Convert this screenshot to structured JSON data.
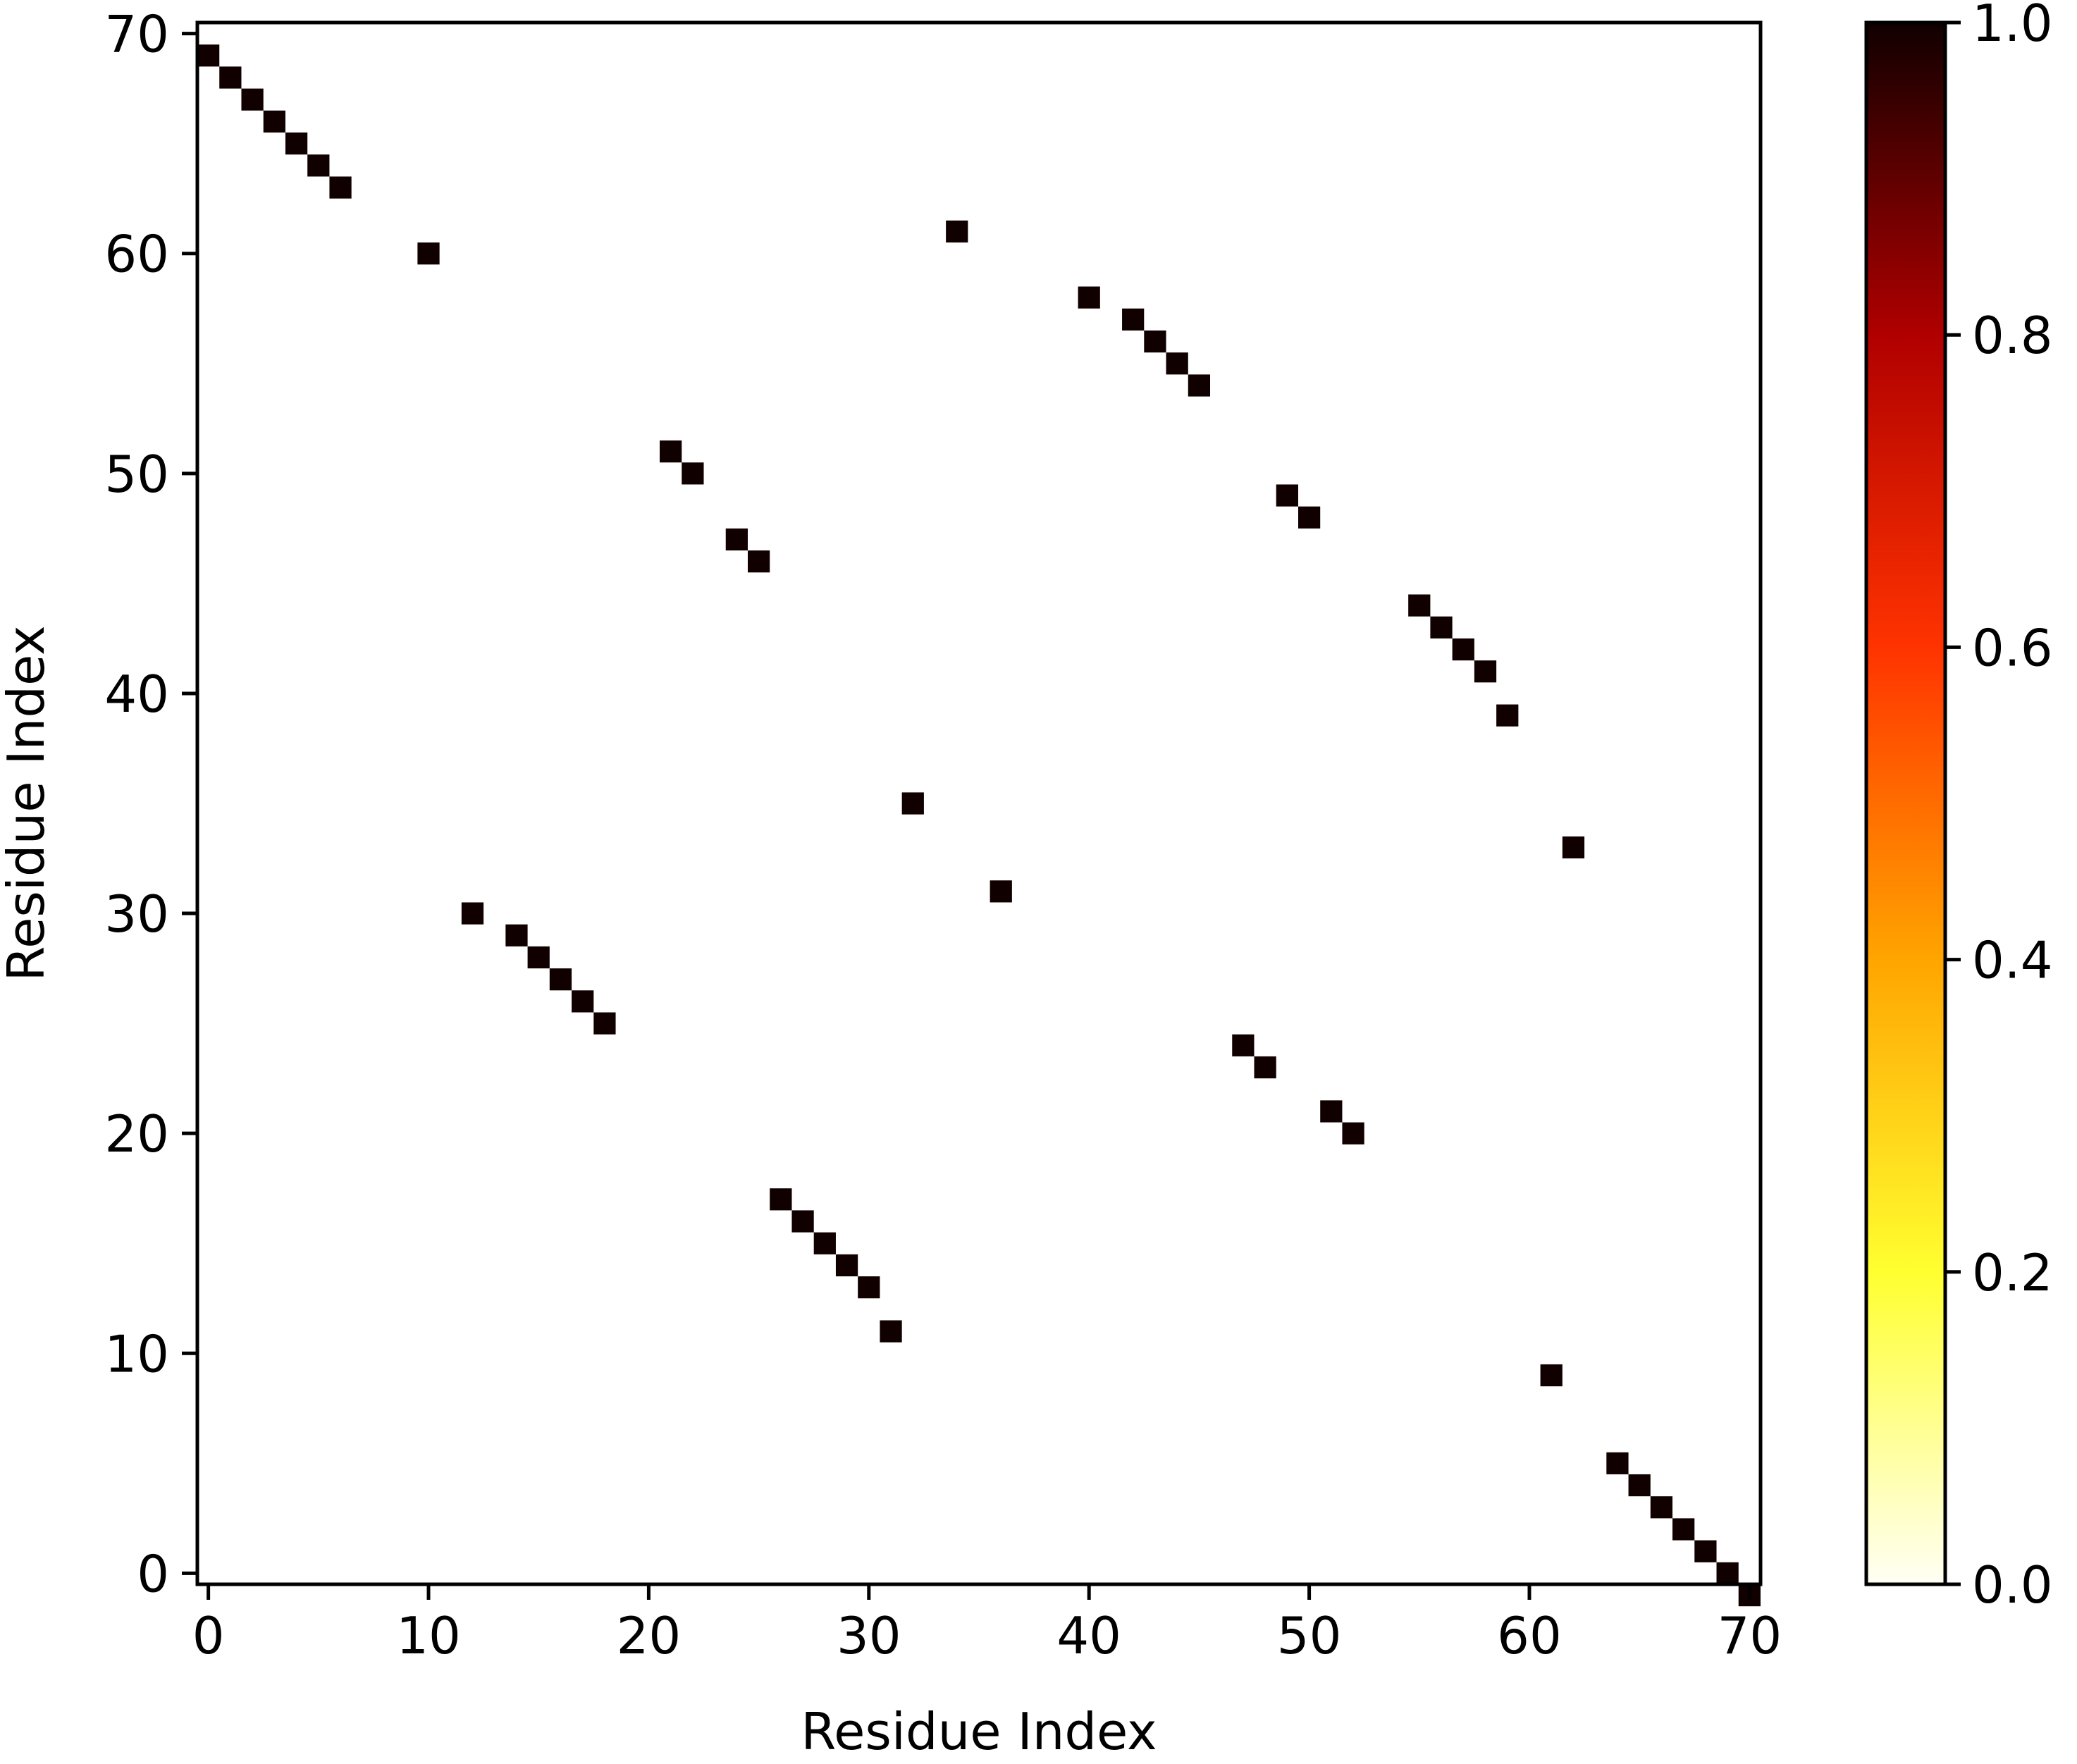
{
  "chart_data": {
    "type": "heatmap",
    "title": "",
    "xlabel": "Residue Index",
    "ylabel": "Residue Index",
    "size": 71,
    "xlim": [
      -0.5,
      70.5
    ],
    "ylim": [
      70.5,
      -0.5
    ],
    "x_ticks": [
      0,
      10,
      20,
      30,
      40,
      50,
      60,
      70
    ],
    "y_ticks": [
      0,
      10,
      20,
      30,
      40,
      50,
      60,
      70
    ],
    "grid": false,
    "cells": [
      [
        0,
        70
      ],
      [
        1,
        69
      ],
      [
        2,
        68
      ],
      [
        3,
        67
      ],
      [
        4,
        66
      ],
      [
        5,
        65
      ],
      [
        6,
        64
      ],
      [
        10,
        61
      ],
      [
        12,
        31
      ],
      [
        14,
        30
      ],
      [
        15,
        29
      ],
      [
        16,
        28
      ],
      [
        17,
        27
      ],
      [
        18,
        26
      ],
      [
        21,
        52
      ],
      [
        22,
        51
      ],
      [
        24,
        48
      ],
      [
        25,
        47
      ],
      [
        26,
        18
      ],
      [
        27,
        17
      ],
      [
        28,
        16
      ],
      [
        29,
        15
      ],
      [
        30,
        14
      ],
      [
        31,
        12
      ],
      [
        32,
        36
      ],
      [
        34,
        62
      ],
      [
        36,
        32
      ],
      [
        40,
        59
      ],
      [
        42,
        58
      ],
      [
        43,
        57
      ],
      [
        44,
        56
      ],
      [
        45,
        55
      ],
      [
        47,
        25
      ],
      [
        48,
        24
      ],
      [
        49,
        50
      ],
      [
        50,
        49
      ],
      [
        51,
        22
      ],
      [
        52,
        21
      ],
      [
        55,
        45
      ],
      [
        56,
        44
      ],
      [
        57,
        43
      ],
      [
        58,
        42
      ],
      [
        59,
        40
      ],
      [
        61,
        10
      ],
      [
        62,
        34
      ],
      [
        64,
        6
      ],
      [
        65,
        5
      ],
      [
        66,
        4
      ],
      [
        67,
        3
      ],
      [
        68,
        2
      ],
      [
        69,
        1
      ],
      [
        70,
        0
      ]
    ],
    "cell_value": 1.0,
    "background_value": 0.0,
    "colorbar": {
      "colormap": "hot_r",
      "min": 0.0,
      "max": 1.0,
      "ticks": [
        "0.0",
        "0.2",
        "0.4",
        "0.6",
        "0.8",
        "1.0"
      ],
      "stops": [
        "#fffff5",
        "#ffff30",
        "#ffa500",
        "#ff3300",
        "#b00000",
        "#100000"
      ]
    }
  }
}
